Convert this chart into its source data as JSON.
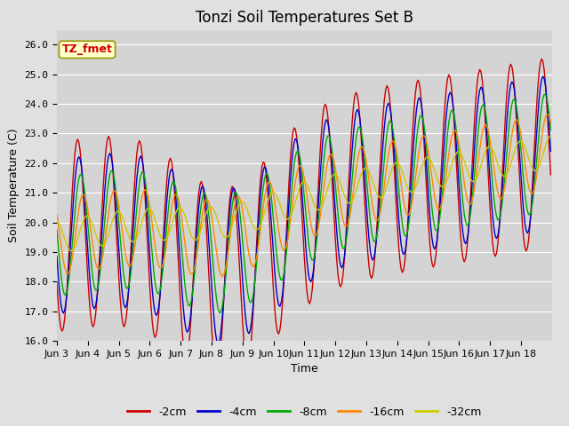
{
  "title": "Tonzi Soil Temperatures Set B",
  "xlabel": "Time",
  "ylabel": "Soil Temperature (C)",
  "ylim": [
    16.0,
    26.5
  ],
  "yticks": [
    16.0,
    17.0,
    18.0,
    19.0,
    20.0,
    21.0,
    22.0,
    23.0,
    24.0,
    25.0,
    26.0
  ],
  "ytick_labels": [
    "16.0",
    "17.0",
    "18.0",
    "19.0",
    "20.0",
    "21.0",
    "22.0",
    "23.0",
    "24.0",
    "25.0",
    "26.0"
  ],
  "xtick_labels": [
    "Jun 3",
    "Jun 4",
    "Jun 5",
    "Jun 6",
    "Jun 7",
    "Jun 8",
    "Jun 9",
    "Jun 10",
    "Jun 11",
    "Jun 12",
    "Jun 13",
    "Jun 14",
    "Jun 15",
    "Jun 16",
    "Jun 17",
    "Jun 18"
  ],
  "series_colors": [
    "#cc0000",
    "#0000cc",
    "#00aa00",
    "#ff8800",
    "#cccc00"
  ],
  "series_labels": [
    "-2cm",
    "-4cm",
    "-8cm",
    "-16cm",
    "-32cm"
  ],
  "legend_label": "TZ_fmet",
  "bg_color": "#e0e0e0",
  "plot_bg_color": "#d4d4d4",
  "grid_color": "#ffffff",
  "title_fontsize": 12,
  "axis_fontsize": 9,
  "tick_fontsize": 8,
  "figsize": [
    6.4,
    4.8
  ],
  "dpi": 100
}
